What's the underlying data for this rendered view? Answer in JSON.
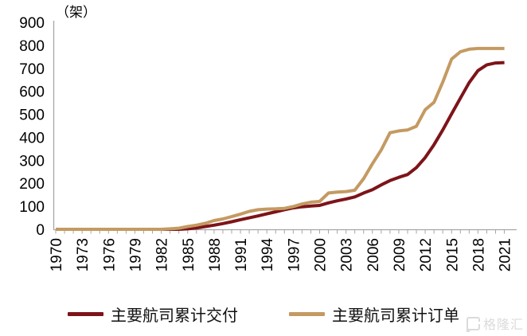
{
  "chart_data": {
    "type": "line",
    "title": "",
    "unit_label": "（架）",
    "xlabel": "",
    "ylabel": "",
    "ylim": [
      0,
      900
    ],
    "y_tick_step": 100,
    "x_label_every": 3,
    "grid": false,
    "legend_position": "bottom",
    "axis_color": "#A6A6A6",
    "tick_label_color": "#000000",
    "x": [
      1970,
      1971,
      1972,
      1973,
      1974,
      1975,
      1976,
      1977,
      1978,
      1979,
      1980,
      1981,
      1982,
      1983,
      1984,
      1985,
      1986,
      1987,
      1988,
      1989,
      1990,
      1991,
      1992,
      1993,
      1994,
      1995,
      1996,
      1997,
      1998,
      1999,
      2000,
      2001,
      2002,
      2003,
      2004,
      2005,
      2006,
      2007,
      2008,
      2009,
      2010,
      2011,
      2012,
      2013,
      2014,
      2015,
      2016,
      2017,
      2018,
      2019,
      2020,
      2021
    ],
    "series": [
      {
        "name": "主要航司累计交付",
        "color": "#7D1419",
        "values": [
          0,
          0,
          0,
          0,
          0,
          0,
          0,
          0,
          0,
          0,
          0,
          0,
          0,
          0,
          0,
          2,
          6,
          12,
          18,
          25,
          33,
          42,
          50,
          58,
          67,
          76,
          85,
          93,
          98,
          101,
          104,
          115,
          124,
          132,
          141,
          158,
          172,
          193,
          212,
          226,
          238,
          268,
          312,
          368,
          432,
          502,
          570,
          638,
          690,
          715,
          723,
          725
        ]
      },
      {
        "name": "主要航司累计订单",
        "color": "#C49A62",
        "values": [
          0,
          0,
          0,
          0,
          0,
          0,
          0,
          0,
          0,
          0,
          0,
          0,
          0,
          2,
          5,
          12,
          18,
          26,
          38,
          45,
          55,
          66,
          78,
          85,
          88,
          89,
          91,
          99,
          110,
          118,
          121,
          158,
          162,
          164,
          170,
          220,
          285,
          345,
          420,
          428,
          432,
          448,
          520,
          552,
          640,
          740,
          772,
          783,
          786,
          786,
          786,
          786
        ]
      }
    ]
  },
  "watermark": {
    "icon": "gelonghui-logo",
    "text": "格隆汇"
  }
}
